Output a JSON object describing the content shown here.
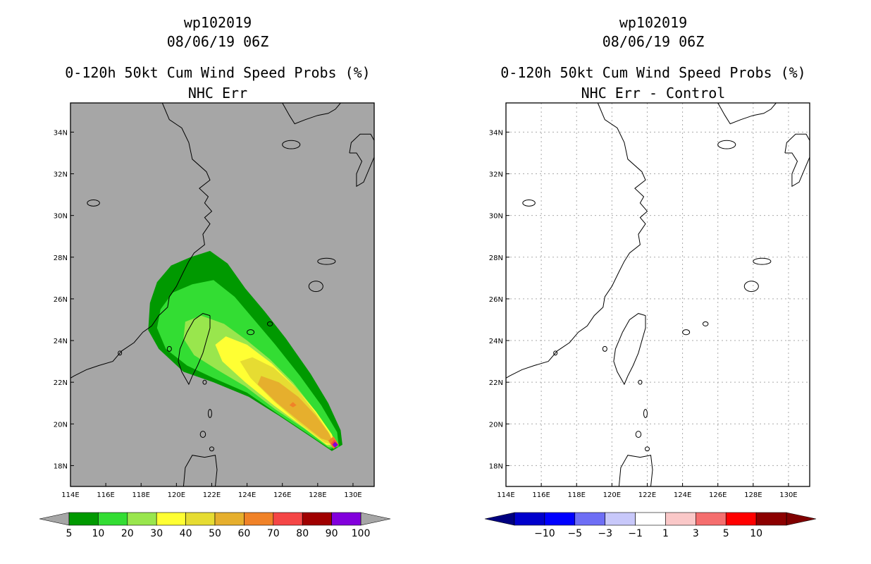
{
  "left_panel": {
    "storm_id": "wp102019",
    "datetime": "08/06/19 06Z",
    "title": "0-120h 50kt Cum Wind Speed Probs (%)",
    "subtitle": "NHC Err"
  },
  "right_panel": {
    "storm_id": "wp102019",
    "datetime": "08/06/19 06Z",
    "title": "0-120h 50kt Cum Wind Speed Probs (%)",
    "subtitle": "NHC Err - Control"
  },
  "chart_data": [
    {
      "type": "heatmap",
      "title": "0-120h 50kt Cum Wind Speed Probs (%)",
      "subtitle": "NHC Err",
      "x_ticks": [
        "114E",
        "116E",
        "118E",
        "120E",
        "122E",
        "124E",
        "126E",
        "128E",
        "130E"
      ],
      "y_ticks": [
        "18N",
        "20N",
        "22N",
        "24N",
        "26N",
        "28N",
        "30N",
        "32N",
        "34N"
      ],
      "xlim": [
        114,
        131.2
      ],
      "ylim": [
        17,
        35.4
      ],
      "grid": false,
      "colorbar": {
        "labels": [
          "5",
          "10",
          "20",
          "30",
          "40",
          "50",
          "60",
          "70",
          "80",
          "90",
          "100"
        ],
        "colors": [
          "#009900",
          "#33dd33",
          "#99e64d",
          "#ffff33",
          "#e6dc32",
          "#e6af2d",
          "#f08228",
          "#f54646",
          "#a00000",
          "#8200dc"
        ],
        "under_color": "#a6a6a6",
        "over_color": "#a6a6a6"
      },
      "background": "#a6a6a6",
      "track_start": [
        129.0,
        19.0
      ]
    },
    {
      "type": "heatmap",
      "title": "0-120h 50kt Cum Wind Speed Probs (%)",
      "subtitle": "NHC Err - Control",
      "x_ticks": [
        "114E",
        "116E",
        "118E",
        "120E",
        "122E",
        "124E",
        "126E",
        "128E",
        "130E"
      ],
      "y_ticks": [
        "18N",
        "20N",
        "22N",
        "24N",
        "26N",
        "28N",
        "30N",
        "32N",
        "34N"
      ],
      "xlim": [
        114,
        131.2
      ],
      "ylim": [
        17,
        35.4
      ],
      "grid": true,
      "colorbar": {
        "labels": [
          "-10",
          "-5",
          "-3",
          "-1",
          "1",
          "3",
          "5",
          "10"
        ],
        "colors": [
          "#0000cc",
          "#0000ff",
          "#6e6ef5",
          "#c8c8fa",
          "#ffffff",
          "#fac8c8",
          "#f56e6e",
          "#ff0000",
          "#8c0000"
        ],
        "under_color": "#000080",
        "over_color": "#800000"
      },
      "background": "#ffffff"
    }
  ]
}
